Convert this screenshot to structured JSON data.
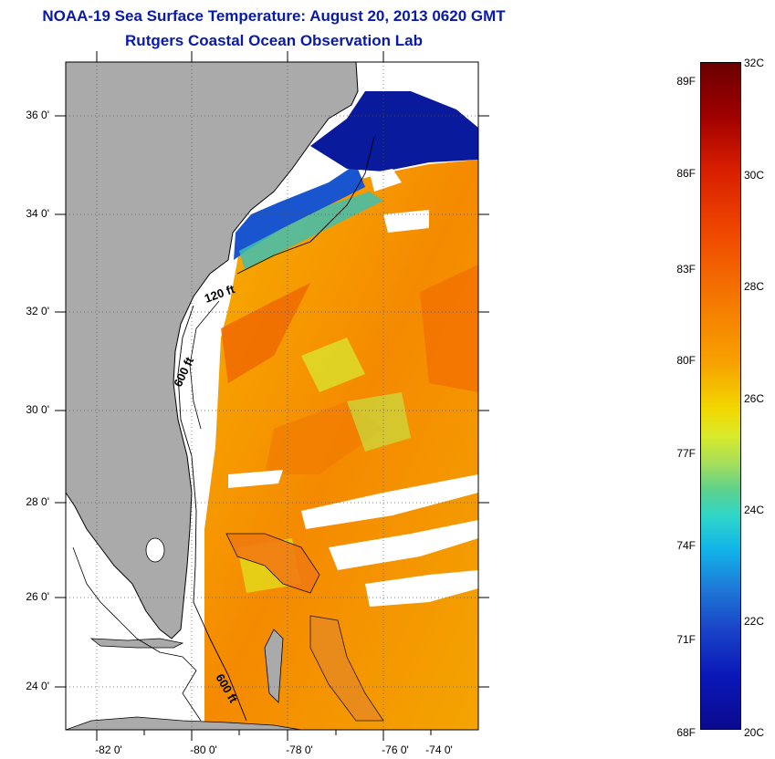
{
  "header": {
    "title": "NOAA-19 Sea Surface Temperature:  August 20, 2013 0620 GMT",
    "subtitle": "Rutgers Coastal Ocean Observation Lab"
  },
  "map": {
    "lat_labels": [
      "36 0'",
      "34 0'",
      "32 0'",
      "30 0'",
      "28 0'",
      "26 0'",
      "24 0'"
    ],
    "lon_labels": [
      "-82 0'",
      "-80 0'",
      "-78 0'",
      "-76 0'",
      "-74 0'"
    ],
    "contour_labels": [
      "120 ft",
      "600 ft",
      "600 ft"
    ],
    "colors": {
      "land": "#aaaaaa",
      "no_data": "#ffffff",
      "coast": "#000000"
    }
  },
  "colorbar": {
    "fahrenheit": [
      "89F",
      "86F",
      "83F",
      "80F",
      "77F",
      "74F",
      "71F",
      "68F"
    ],
    "celsius": [
      "32C",
      "30C",
      "28C",
      "26C",
      "24C",
      "22C",
      "20C"
    ],
    "colors": {
      "max": "#6b0000",
      "mid": "#f2d800",
      "min": "#0a0a90"
    }
  }
}
